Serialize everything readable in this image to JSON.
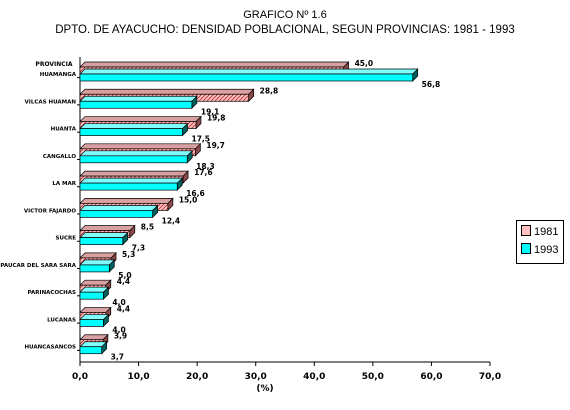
{
  "chart_data": {
    "type": "bar",
    "orientation": "horizontal",
    "title": "GRAFICO Nº 1.6",
    "subtitle": "DPTO. DE AYACUCHO: DENSIDAD POBLACIONAL, SEGUN PROVINCIAS: 1981 - 1993",
    "ylabel": "PROVINCIA",
    "xlabel": "(%)",
    "xlim": [
      0,
      70
    ],
    "x_ticks": [
      "0,0",
      "10,0",
      "20,0",
      "30,0",
      "40,0",
      "50,0",
      "60,0",
      "70,0"
    ],
    "grid": false,
    "legend_position": "right",
    "categories": [
      "HUAMANGA",
      "VILCAS HUAMAN",
      "HUANTA",
      "CANGALLO",
      "LA MAR",
      "VICTOR FAJARDO",
      "SUCRE",
      "PAUCAR DEL SARA SARA",
      "PARINACOCHAS",
      "LUCANAS",
      "HUANCASANCOS"
    ],
    "series": [
      {
        "name": "1981",
        "color": "#ffc0c0",
        "pattern": "diagonal-hatch",
        "values": [
          45.0,
          28.8,
          19.8,
          19.7,
          17.6,
          15.0,
          8.5,
          5.3,
          4.4,
          4.4,
          3.9
        ],
        "labels": [
          "45,0",
          "28,8",
          "19,8",
          "19,7",
          "17,6",
          "15,0",
          "8,5",
          "5,3",
          "4,4",
          "4,4",
          "3,9"
        ]
      },
      {
        "name": "1993",
        "color": "#00ffff",
        "values": [
          56.8,
          19.1,
          17.5,
          18.3,
          16.6,
          12.4,
          7.3,
          5.0,
          4.0,
          4.0,
          3.7
        ],
        "labels": [
          "56,8",
          "19,1",
          "17,5",
          "18,3",
          "16,6",
          "12,4",
          "7,3",
          "5,0",
          "4,0",
          "4,0",
          "3,7"
        ]
      }
    ]
  }
}
